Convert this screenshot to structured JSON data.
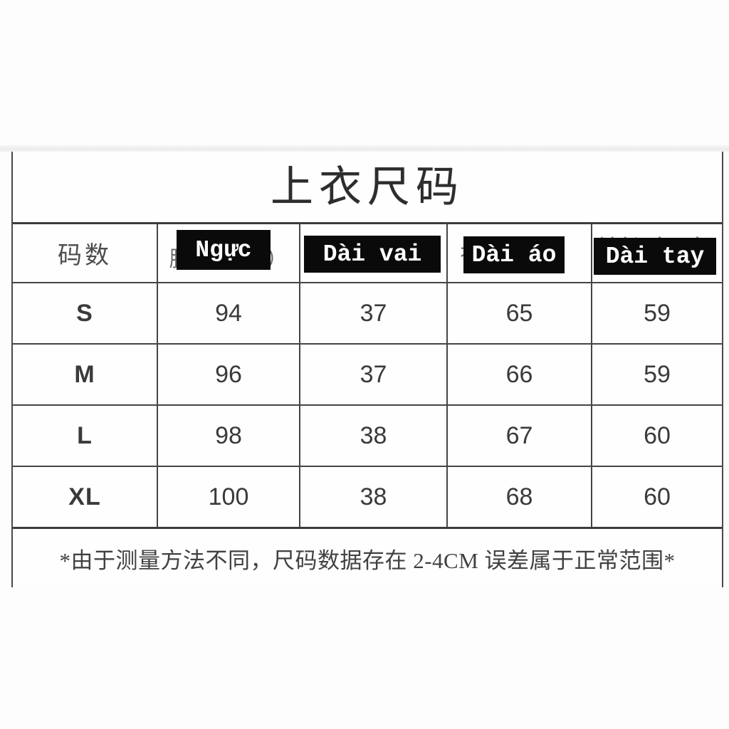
{
  "colors": {
    "page_background": "#fdfdfd",
    "table_border": "#454545",
    "header_box_background": "#0a0a0a",
    "header_box_text": "#ffffff",
    "body_text": "#3a3a3a"
  },
  "table": {
    "title": "上衣尺码",
    "size_column_header": "码数",
    "columns": [
      {
        "label": "Ngực",
        "behind": "胸围（CM）"
      },
      {
        "label": "Dài vai",
        "behind": "肩宽（CM）"
      },
      {
        "label": "Dài áo",
        "behind": "衣长（CM）"
      },
      {
        "label": "Dài tay",
        "behind": "袖长（CM）"
      }
    ],
    "rows": [
      {
        "size": "S",
        "values": [
          "94",
          "37",
          "65",
          "59"
        ]
      },
      {
        "size": "M",
        "values": [
          "96",
          "37",
          "66",
          "59"
        ]
      },
      {
        "size": "L",
        "values": [
          "98",
          "38",
          "67",
          "60"
        ]
      },
      {
        "size": "XL",
        "values": [
          "100",
          "38",
          "68",
          "60"
        ]
      }
    ],
    "note": "*由于测量方法不同，尺码数据存在 2-4CM 误差属于正常范围*"
  }
}
